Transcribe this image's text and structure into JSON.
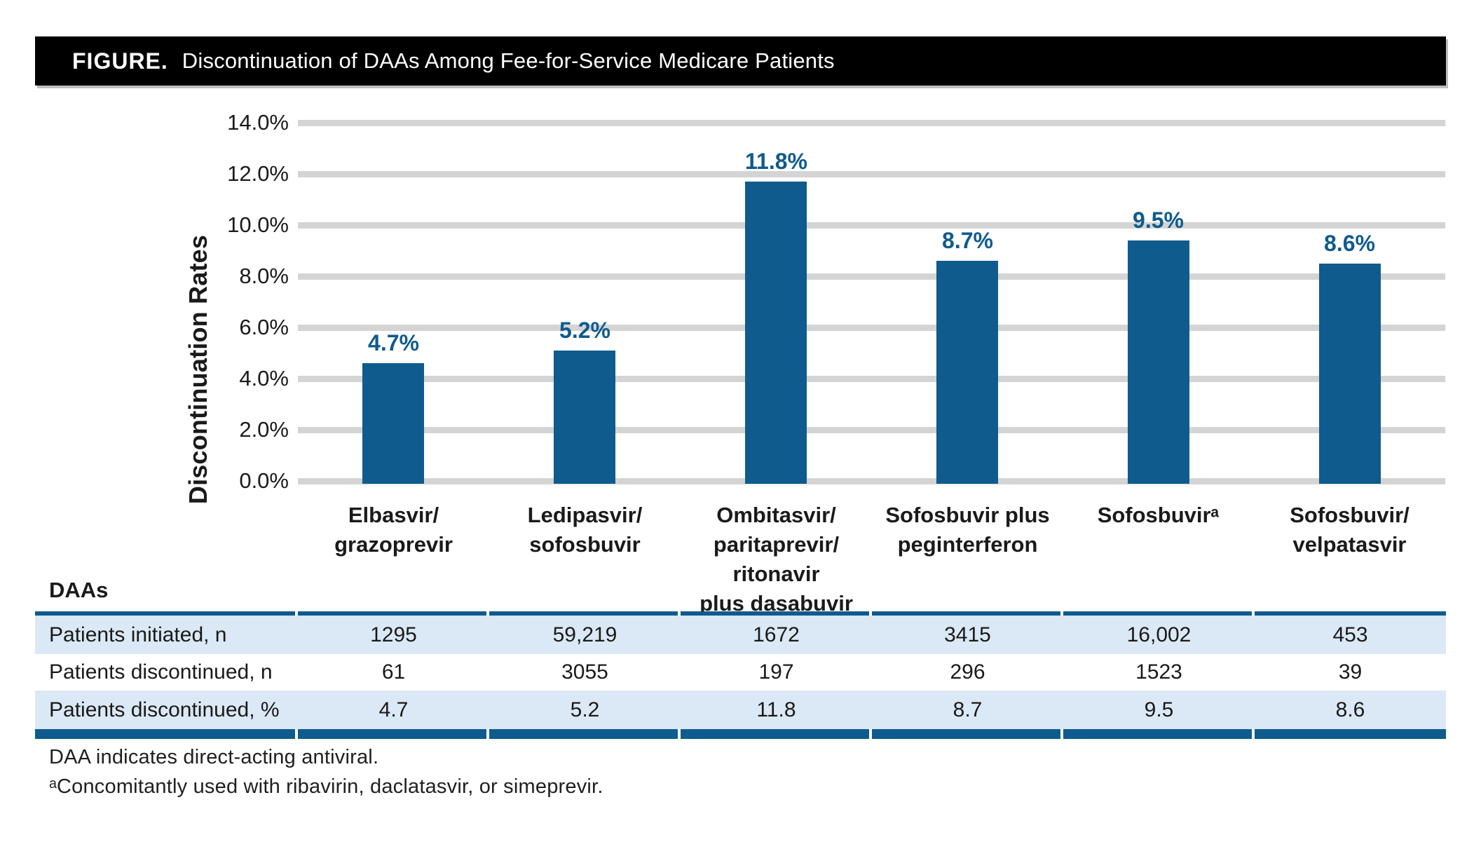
{
  "figure": {
    "label": "FIGURE.",
    "title": "Discontinuation of DAAs Among Fee-for-Service Medicare Patients"
  },
  "chart_data": {
    "type": "bar",
    "title": "Discontinuation of DAAs Among Fee-for-Service Medicare Patients",
    "ylabel": "Discontinuation Rates",
    "xlabel": "DAAs",
    "ylim": [
      0,
      14
    ],
    "ytick_step": 2,
    "ytick_labels": [
      "0.0%",
      "2.0%",
      "4.0%",
      "6.0%",
      "8.0%",
      "10.0%",
      "12.0%",
      "14.0%"
    ],
    "categories": [
      [
        "Elbasvir/",
        "grazoprevir"
      ],
      [
        "Ledipasvir/",
        "sofosbuvir"
      ],
      [
        "Ombitasvir/",
        "paritaprevir/",
        "ritonavir",
        "plus dasabuvir"
      ],
      [
        "Sofosbuvir plus",
        "peginterferon"
      ],
      [
        "Sofosbuvirᵃ"
      ],
      [
        "Sofosbuvir/",
        "velpatasvir"
      ]
    ],
    "values": [
      4.7,
      5.2,
      11.8,
      8.7,
      9.5,
      8.6
    ],
    "bar_labels": [
      "4.7%",
      "5.2%",
      "11.8%",
      "8.7%",
      "9.5%",
      "8.6%"
    ],
    "grid": true,
    "legend_position": "none",
    "colors": {
      "bar": "#0f5b8d",
      "bar_label": "#0f5b8d",
      "gridline": "#d4d4d4"
    }
  },
  "table": {
    "header_label": "DAAs",
    "rows": [
      {
        "label": "Patients initiated, n",
        "values": [
          "1295",
          "59,219",
          "1672",
          "3415",
          "16,002",
          "453"
        ]
      },
      {
        "label": "Patients discontinued, n",
        "values": [
          "61",
          "3055",
          "197",
          "296",
          "1523",
          "39"
        ]
      },
      {
        "label": "Patients discontinued, %",
        "values": [
          "4.7",
          "5.2",
          "11.8",
          "8.7",
          "9.5",
          "8.6"
        ]
      }
    ],
    "colors": {
      "stripe": "#dbe8f5",
      "border": "#0f5b8d"
    }
  },
  "footnotes": [
    "DAA indicates direct-acting antiviral.",
    "ᵃConcomitantly used with ribavirin, daclatasvir, or simeprevir."
  ]
}
